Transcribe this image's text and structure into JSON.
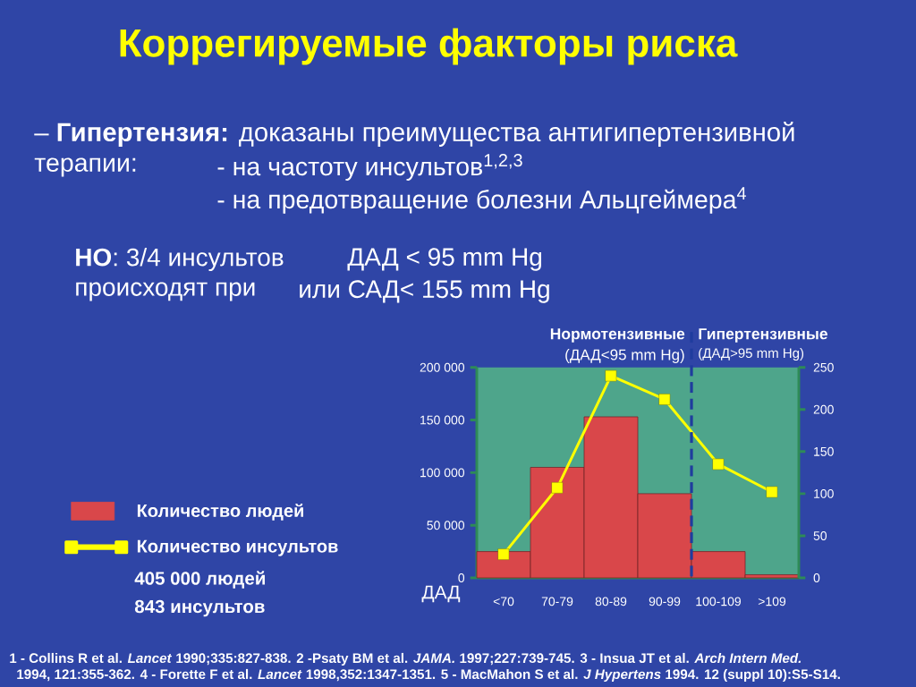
{
  "chart_data": {
    "type": "bar",
    "title": "Коррегируемые факторы риска",
    "categories": [
      "<70",
      "70-79",
      "80-89",
      "90-99",
      "100-109",
      ">109"
    ],
    "xlabel": "ДАД",
    "series": [
      {
        "name": "Количество людей",
        "color": "#d9474a",
        "values": [
          25000,
          105000,
          153000,
          80000,
          25000,
          3000
        ]
      },
      {
        "name": "Количество инсультов",
        "type": "line",
        "axis": "y2",
        "marker": "square",
        "color": "#ffff00",
        "values": [
          28,
          107,
          240,
          212,
          135,
          102
        ]
      }
    ],
    "ylim": [
      0,
      200000
    ],
    "yticks": [
      0,
      {
        "value": 50000,
        "label": "50 000"
      },
      {
        "value": 100000,
        "label": "100 000"
      },
      {
        "value": 150000,
        "label": "150 000"
      },
      {
        "value": 200000,
        "label": "200 000"
      }
    ],
    "y2lim": [
      0,
      250
    ],
    "y2ticks": [
      0,
      50,
      100,
      150,
      200,
      250
    ],
    "legend": "left",
    "annotations": [
      "Нормотензивные",
      "(ДАД<95 mm Hg)",
      "Гипертензивные",
      "(ДАД>95 mm Hg)",
      "– **Гипертензия:** доказаны преимущества антигипертензивной",
      "терапии:",
      "- на частоту инсультов$^{1,2,3}$",
      "- на предотвращение болезни Альцгеймера$^{4}$",
      "**НО**: 3/4 инсультов",
      "происходят  при",
      "ДАД < 95 mm Hg",
      "или САД< 155 mm Hg",
      "405 000 людей",
      "843 инсультов",
      "1 - Collins R et al. *Lancet* 1990;335:827-838. 2 -Psaty BM et al. *JAMA.* 1997;227:739-745.   3 - Insua JT et al. *Arch Intern Med.*",
      "1994, 121:355-362. 4 - Forette F et al. *Lancet* 1998,352:1347-1351.  5 - MacMahon S et al. *J Hypertens* 1994. 12 (suppl 10):S5-S14."
    ]
  }
}
